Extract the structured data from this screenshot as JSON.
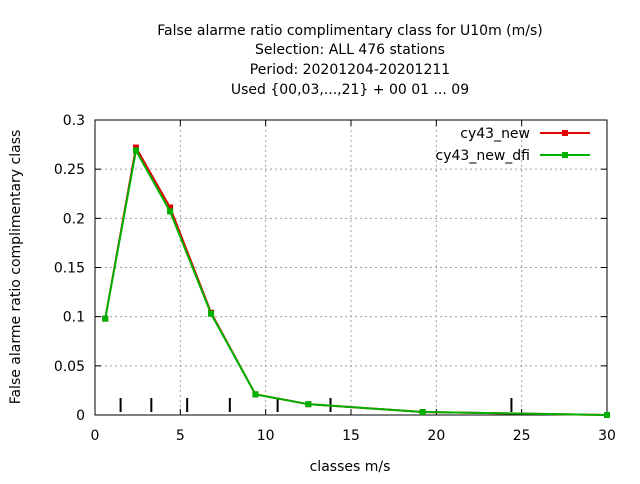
{
  "chart_data": {
    "type": "line",
    "title_lines": [
      "False alarme ratio complimentary class  for U10m (m/s)",
      "Selection: ALL    476 stations",
      "Period: 20201204-20201211",
      "Used {00,03,...,21} + 00 01 ... 09"
    ],
    "xlabel": "classes m/s",
    "ylabel": "False alarme ratio complimentary class",
    "xlim": [
      0,
      30
    ],
    "ylim": [
      0,
      0.3
    ],
    "x_ticks": [
      0,
      5,
      10,
      15,
      20,
      25,
      30
    ],
    "x_tick_labels": [
      "0",
      "5",
      "10",
      "15",
      "20",
      "25",
      "30"
    ],
    "y_ticks": [
      0,
      0.05,
      0.1,
      0.15,
      0.2,
      0.25,
      0.3
    ],
    "y_tick_labels": [
      "0",
      "0.05",
      "0.1",
      "0.15",
      "0.2",
      "0.25",
      "0.3"
    ],
    "grid": true,
    "legend_position": "top-right",
    "class_limits": [
      1.5,
      3.3,
      5.4,
      7.9,
      10.7,
      13.8,
      24.4
    ],
    "series": [
      {
        "name": "cy43_new",
        "color": "#e00000",
        "x": [
          0.6,
          2.4,
          4.4,
          6.8,
          9.4,
          12.5,
          19.2,
          30.0
        ],
        "y": [
          0.098,
          0.272,
          0.211,
          0.104,
          0.021,
          0.011,
          0.003,
          0.0
        ]
      },
      {
        "name": "cy43_new_dfi",
        "color": "#00b000",
        "x": [
          0.6,
          2.4,
          4.4,
          6.8,
          9.4,
          12.5,
          19.2,
          30.0
        ],
        "y": [
          0.098,
          0.269,
          0.207,
          0.103,
          0.021,
          0.011,
          0.003,
          0.0
        ]
      }
    ]
  }
}
